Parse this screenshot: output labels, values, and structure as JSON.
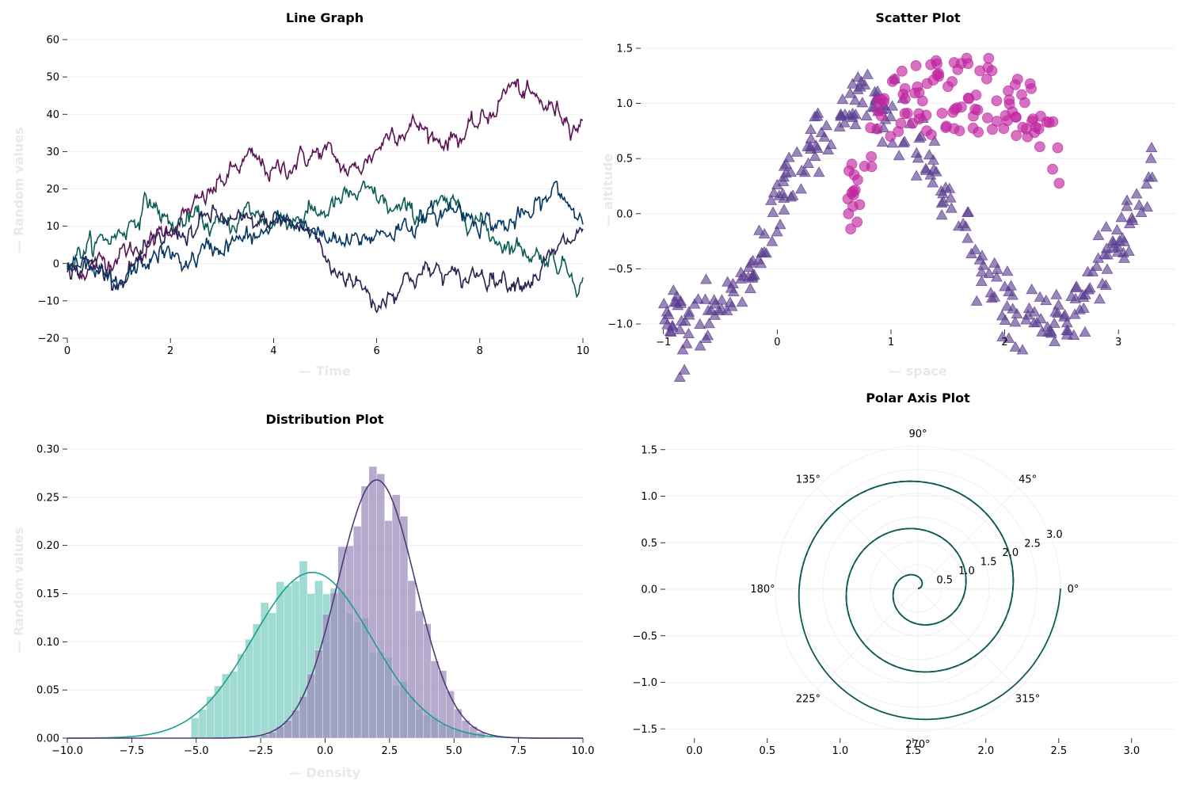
{
  "chart_data": [
    {
      "type": "line",
      "title": "Line Graph",
      "xlabel": "— Time",
      "ylabel": "— Random values",
      "xlim": [
        0,
        10
      ],
      "ylim": [
        -20,
        60
      ],
      "xticks": [
        0,
        2,
        4,
        6,
        8,
        10
      ],
      "yticks": [
        -20,
        -10,
        0,
        10,
        20,
        30,
        40,
        50,
        60
      ],
      "grid": true,
      "series": [
        {
          "color": "#5c1253",
          "points": [
            [
              0,
              -2
            ],
            [
              0.5,
              -1
            ],
            [
              1,
              3
            ],
            [
              1.5,
              4
            ],
            [
              2,
              10
            ],
            [
              2.5,
              15
            ],
            [
              3,
              22
            ],
            [
              3.5,
              28
            ],
            [
              3.8,
              26
            ],
            [
              4,
              24
            ],
            [
              4.5,
              28
            ],
            [
              5,
              30
            ],
            [
              5.5,
              24
            ],
            [
              5.9,
              29
            ],
            [
              6.3,
              36
            ],
            [
              6.8,
              37
            ],
            [
              7.2,
              33
            ],
            [
              7.8,
              35
            ],
            [
              8.2,
              40
            ],
            [
              8.6,
              48
            ],
            [
              9,
              44
            ],
            [
              9.5,
              41
            ],
            [
              10,
              37
            ]
          ]
        },
        {
          "color": "#0b5c55",
          "points": [
            [
              0,
              1
            ],
            [
              0.5,
              5
            ],
            [
              1,
              8
            ],
            [
              1.3,
              12
            ],
            [
              1.6,
              17
            ],
            [
              2,
              10
            ],
            [
              2.5,
              12
            ],
            [
              3,
              9
            ],
            [
              3.5,
              14
            ],
            [
              4,
              11
            ],
            [
              4.5,
              13
            ],
            [
              5,
              14
            ],
            [
              5.5,
              18
            ],
            [
              6,
              18
            ],
            [
              6.3,
              14
            ],
            [
              6.8,
              13
            ],
            [
              7.2,
              15
            ],
            [
              7.8,
              14
            ],
            [
              8.2,
              8
            ],
            [
              8.6,
              5
            ],
            [
              9,
              3
            ],
            [
              9.5,
              1
            ],
            [
              10,
              -5
            ]
          ]
        },
        {
          "color": "#29214f",
          "points": [
            [
              0,
              -2
            ],
            [
              0.5,
              0
            ],
            [
              1,
              -4
            ],
            [
              1.5,
              2
            ],
            [
              2,
              8
            ],
            [
              2.5,
              9
            ],
            [
              2.8,
              13
            ],
            [
              3.2,
              11
            ],
            [
              3.6,
              10
            ],
            [
              4,
              12
            ],
            [
              4.4,
              10
            ],
            [
              4.8,
              8
            ],
            [
              5.1,
              -2
            ],
            [
              5.5,
              -3
            ],
            [
              6,
              -11
            ],
            [
              6.3,
              -7
            ],
            [
              6.7,
              -3
            ],
            [
              7.2,
              -2
            ],
            [
              7.6,
              -5
            ],
            [
              8,
              -2
            ],
            [
              8.5,
              -4
            ],
            [
              9,
              -4
            ],
            [
              9.5,
              3
            ],
            [
              10,
              9
            ]
          ]
        },
        {
          "color": "#053561",
          "points": [
            [
              0,
              0
            ],
            [
              0.5,
              -3
            ],
            [
              1,
              -7
            ],
            [
              1.3,
              -2
            ],
            [
              1.8,
              3
            ],
            [
              2.3,
              0
            ],
            [
              2.8,
              4
            ],
            [
              3.3,
              6
            ],
            [
              3.7,
              7
            ],
            [
              4,
              10
            ],
            [
              4.5,
              12
            ],
            [
              5,
              6
            ],
            [
              5.5,
              5
            ],
            [
              6,
              8
            ],
            [
              6.5,
              10
            ],
            [
              7,
              12
            ],
            [
              7.5,
              15
            ],
            [
              8,
              12
            ],
            [
              8.5,
              10
            ],
            [
              9,
              13
            ],
            [
              9.5,
              20
            ],
            [
              10,
              12
            ]
          ]
        }
      ]
    },
    {
      "type": "scatter",
      "title": "Scatter Plot",
      "xlabel": "— space",
      "ylabel": "— altitude",
      "xlim": [
        -1.2,
        3.5
      ],
      "ylim": [
        -1.05,
        1.55
      ],
      "xticks": [
        -1,
        0,
        1,
        2,
        3
      ],
      "yticks": [
        -1.0,
        -0.5,
        0.0,
        0.5,
        1.0,
        1.5
      ],
      "grid": true,
      "series": [
        {
          "marker": "triangle",
          "color": "#5b3e8f",
          "function": "sin(2x)",
          "noise": 0.15,
          "x_range": [
            -1,
            3.3
          ],
          "count": 300
        },
        {
          "marker": "circle",
          "color": "#c0279f",
          "function": "semicircle centre 1.6, radius 0.9",
          "x_range": [
            0.6,
            2.5
          ],
          "count": 120
        }
      ]
    },
    {
      "type": "area",
      "title": "Distribution Plot",
      "xlabel": "— Density",
      "ylabel": "— Random values",
      "xlim": [
        -10,
        10
      ],
      "ylim": [
        0,
        0.3
      ],
      "xticks": [
        -10.0,
        -7.5,
        -5.0,
        -2.5,
        0.0,
        2.5,
        5.0,
        7.5,
        10.0
      ],
      "yticks": [
        0.0,
        0.05,
        0.1,
        0.15,
        0.2,
        0.25,
        0.3
      ],
      "grid": true,
      "series": [
        {
          "color": "#1b9e8f",
          "mean": -0.5,
          "sd": 2.3,
          "hist_range": [
            -5.2,
            6.2
          ],
          "peak": 0.172
        },
        {
          "color": "#4d3b7a",
          "mean": 2.0,
          "sd": 1.5,
          "hist_range": [
            -2.5,
            6.0
          ],
          "peak": 0.268
        }
      ]
    },
    {
      "type": "line",
      "title": "Polar Axis Plot",
      "xlim": [
        -0.2,
        3.3
      ],
      "ylim": [
        -1.6,
        1.6
      ],
      "xticks": [
        0.0,
        0.5,
        1.0,
        1.5,
        2.0,
        2.5,
        3.0
      ],
      "yticks": [
        -1.5,
        -1.0,
        -0.5,
        0.0,
        0.5,
        1.0,
        1.5
      ],
      "rticks": [
        0.5,
        1.0,
        1.5,
        2.0,
        2.5,
        3.0
      ],
      "angle_labels": [
        "0°",
        "45°",
        "90°",
        "135°",
        "180°",
        "225°",
        "270°",
        "315°"
      ],
      "grid": true,
      "series": [
        {
          "style": "dashed",
          "color": "#29214f",
          "curve": "r = θ / 2π",
          "theta_max_turns": 2.5
        },
        {
          "style": "solid",
          "color": "#0b5c55",
          "curve": "r = θ / 2π",
          "theta_max_turns": 3.0
        }
      ]
    }
  ]
}
